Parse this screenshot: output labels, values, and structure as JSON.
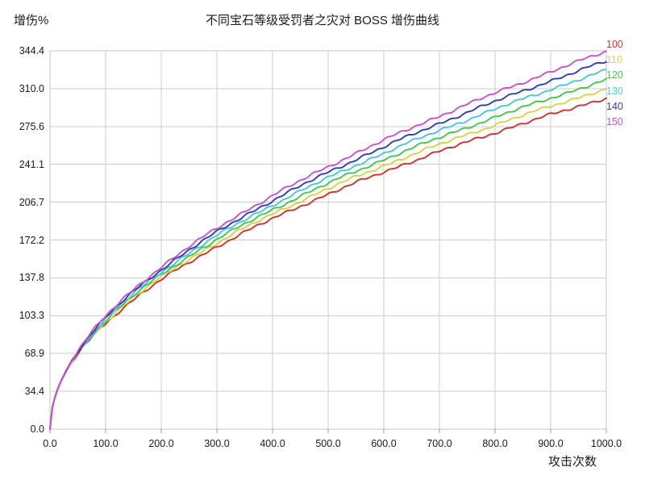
{
  "chart": {
    "title": "不同宝石等级受罚者之灾对 BOSS 增伤曲线",
    "y_axis_title": "增伤%",
    "x_axis_title": "攻击次数",
    "y_tick_labels": [
      "0.0",
      "34.4",
      "68.9",
      "103.3",
      "137.8",
      "172.2",
      "206.7",
      "241.1",
      "275.6",
      "310.0",
      "344.4"
    ],
    "x_tick_labels": [
      "0.0",
      "100.0",
      "200.0",
      "300.0",
      "400.0",
      "500.0",
      "600.0",
      "700.0",
      "800.0",
      "900.0",
      "1000.0"
    ],
    "grid_color": "#cdcdcd",
    "border_color": "#c6c6c6",
    "tick_color": "#9a9a9a",
    "text_color": "#1b1b1b",
    "background": "#ffffff"
  },
  "chart_data": {
    "type": "line",
    "title": "不同宝石等级受罚者之灾对 BOSS 增伤曲线",
    "xlabel": "攻击次数",
    "ylabel": "增伤%",
    "xlim": [
      0,
      1000
    ],
    "ylim": [
      0,
      344.44
    ],
    "x_ticks": [
      0,
      100,
      200,
      300,
      400,
      500,
      600,
      700,
      800,
      900,
      1000
    ],
    "y_ticks": [
      0,
      34.44,
      68.89,
      103.33,
      137.78,
      172.22,
      206.67,
      241.11,
      275.56,
      310.0,
      344.44
    ],
    "grid": true,
    "legend_position": "right-outside",
    "x": [
      0,
      50,
      100,
      150,
      200,
      250,
      300,
      350,
      400,
      450,
      500,
      550,
      600,
      650,
      700,
      750,
      800,
      850,
      900,
      950,
      1000
    ],
    "series": [
      {
        "name": "100",
        "color": "#cc3232",
        "power_fit": {
          "a": 9.87,
          "b": 0.495
        },
        "values": [
          0,
          68.4,
          96.5,
          117.9,
          135.9,
          151.8,
          166.2,
          179.3,
          191.6,
          203.0,
          213.9,
          224.2,
          234.2,
          243.6,
          252.8,
          261.4,
          270.0,
          278.2,
          286.1,
          293.9,
          301.4
        ]
      },
      {
        "name": "110",
        "color": "#d6d24a",
        "power_fit": {
          "a": 9.73,
          "b": 0.501
        },
        "values": [
          0,
          69.1,
          97.7,
          119.9,
          138.3,
          154.7,
          169.5,
          183.1,
          195.7,
          207.7,
          219.0,
          229.6,
          239.8,
          249.7,
          259.1,
          268.3,
          277.0,
          285.5,
          293.8,
          301.9,
          309.9
        ]
      },
      {
        "name": "120",
        "color": "#46c44f",
        "power_fit": {
          "a": 9.58,
          "b": 0.507
        },
        "values": [
          0,
          69.6,
          99.0,
          121.6,
          140.6,
          157.4,
          172.7,
          186.7,
          199.7,
          212.0,
          223.8,
          234.8,
          245.3,
          255.6,
          265.3,
          274.8,
          284.0,
          292.9,
          301.5,
          309.7,
          317.9
        ]
      },
      {
        "name": "130",
        "color": "#4cc6d8",
        "power_fit": {
          "a": 9.44,
          "b": 0.513
        },
        "values": [
          0,
          70.2,
          100.2,
          123.5,
          143.0,
          160.3,
          176.1,
          190.6,
          204.0,
          216.8,
          228.8,
          240.3,
          251.3,
          261.9,
          272.0,
          281.7,
          291.2,
          300.4,
          309.3,
          317.9,
          326.3
        ]
      },
      {
        "name": "140",
        "color": "#2e3fae",
        "power_fit": {
          "a": 9.29,
          "b": 0.519
        },
        "values": [
          0,
          70.7,
          101.4,
          125.1,
          145.3,
          163.0,
          179.3,
          194.3,
          208.1,
          221.4,
          233.9,
          245.6,
          257.0,
          268.0,
          278.3,
          288.5,
          298.6,
          308.0,
          317.1,
          326.1,
          334.9
        ]
      },
      {
        "name": "150",
        "color": "#c653c9",
        "power_fit": {
          "a": 9.15,
          "b": 0.525
        },
        "values": [
          0,
          71.4,
          102.7,
          127.0,
          147.7,
          166.1,
          182.8,
          198.1,
          212.5,
          226.1,
          239.1,
          251.3,
          262.9,
          274.1,
          285.0,
          295.8,
          306.1,
          315.7,
          325.3,
          334.5,
          344.0
        ]
      }
    ]
  }
}
